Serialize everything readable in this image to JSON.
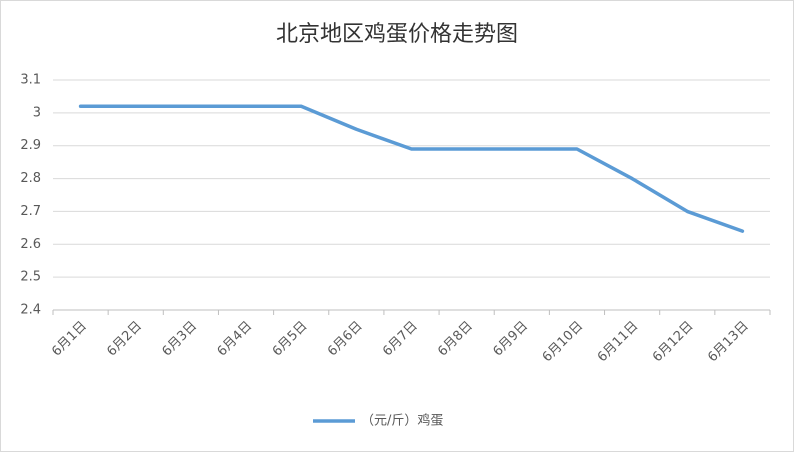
{
  "chart_data": {
    "type": "line",
    "title": "北京地区鸡蛋价格走势图",
    "categories": [
      "6月1日",
      "6月2日",
      "6月3日",
      "6月4日",
      "6月5日",
      "6月6日",
      "6月7日",
      "6月8日",
      "6月9日",
      "6月10日",
      "6月11日",
      "6月12日",
      "6月13日"
    ],
    "series": [
      {
        "name": "（元/斤）鸡蛋",
        "color": "#5b9bd5",
        "values": [
          3.02,
          3.02,
          3.02,
          3.02,
          3.02,
          2.95,
          2.89,
          2.89,
          2.89,
          2.89,
          2.8,
          2.7,
          2.64
        ]
      }
    ],
    "ylim": [
      2.4,
      3.1
    ],
    "yticks": [
      2.4,
      2.5,
      2.6,
      2.7,
      2.8,
      2.9,
      3,
      3.1
    ],
    "grid": true,
    "legend": "bottom"
  }
}
